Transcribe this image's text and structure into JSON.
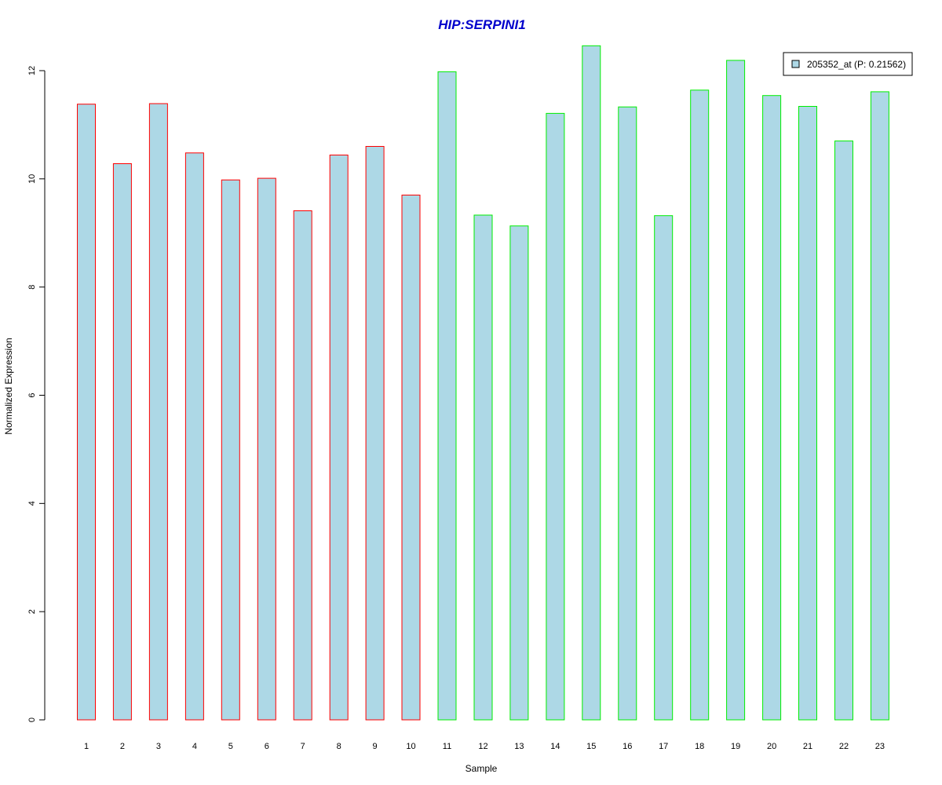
{
  "chart_data": {
    "type": "bar",
    "title": "HIP:SERPINI1",
    "xlabel": "Sample",
    "ylabel": "Normalized Expression",
    "categories": [
      "1",
      "2",
      "3",
      "4",
      "5",
      "6",
      "7",
      "8",
      "9",
      "10",
      "11",
      "12",
      "13",
      "14",
      "15",
      "16",
      "17",
      "18",
      "19",
      "20",
      "21",
      "22",
      "23"
    ],
    "series": [
      {
        "name": "205352_at (P: 0.21562)",
        "values": [
          11.38,
          10.28,
          11.39,
          10.48,
          9.98,
          10.01,
          9.41,
          10.44,
          10.6,
          9.7,
          11.98,
          9.33,
          9.13,
          11.21,
          12.46,
          11.33,
          9.32,
          11.64,
          12.19,
          11.54,
          11.34,
          10.7,
          11.61
        ]
      }
    ],
    "groups": [
      {
        "samples": [
          1,
          2,
          3,
          4,
          5,
          6,
          7,
          8,
          9,
          10
        ],
        "border_color": "#ff0000"
      },
      {
        "samples": [
          11,
          12,
          13,
          14,
          15,
          16,
          17,
          18,
          19,
          20,
          21,
          22,
          23
        ],
        "border_color": "#00ee00"
      }
    ],
    "yticks": [
      0,
      2,
      4,
      6,
      8,
      10,
      12
    ],
    "ylim": [
      0,
      12.46
    ],
    "grid": false,
    "legend_position": "top-right",
    "colors": {
      "bar_fill": "#add8e6",
      "title": "#0000cc",
      "axis": "#000000"
    }
  }
}
